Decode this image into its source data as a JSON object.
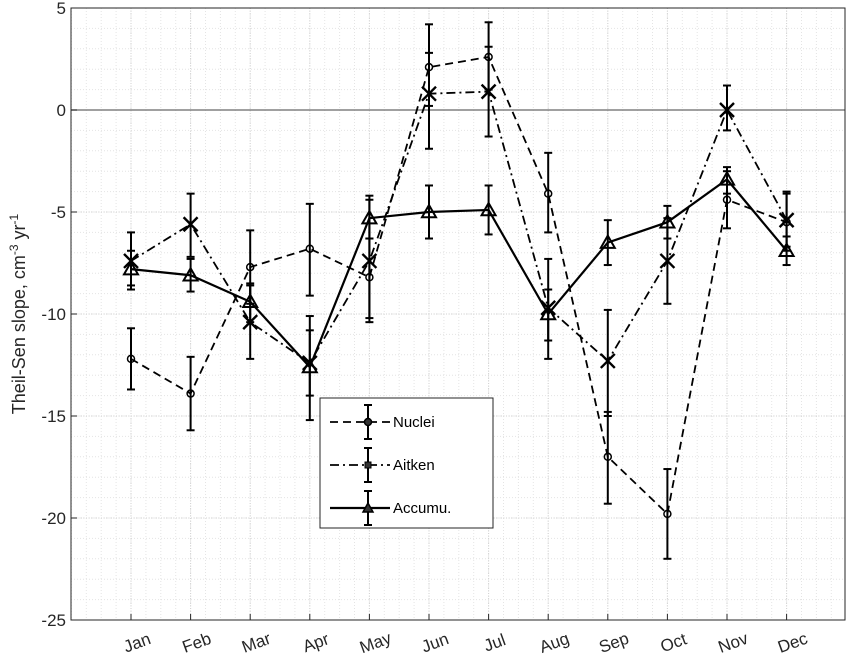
{
  "chart_data": {
    "type": "line",
    "title": "",
    "xlabel": "",
    "ylabel": "Theil-Sen slope, cm",
    "ylabel_sup1": "-3",
    "ylabel_mid": " yr",
    "ylabel_sup2": "-1",
    "categories": [
      "Jan",
      "Feb",
      "Mar",
      "Apr",
      "May",
      "Jun",
      "Jul",
      "Aug",
      "Sep",
      "Oct",
      "Nov",
      "Dec"
    ],
    "ylim": [
      -25,
      5
    ],
    "yticks": [
      5,
      0,
      -5,
      -10,
      -15,
      -20,
      -25
    ],
    "ytick_labels": [
      "5",
      "0",
      "-5",
      "-10",
      "-15",
      "-20",
      "-25"
    ],
    "grid": true,
    "minor_grid": true,
    "zero_line": true,
    "legend_position": "lower-center",
    "series": [
      {
        "name": "Nuclei",
        "line_style": "dashed",
        "marker": "circle",
        "values": [
          -12.2,
          -13.9,
          -7.7,
          -6.8,
          -8.2,
          2.1,
          2.6,
          -4.1,
          -17.0,
          -19.8,
          -4.4,
          -5.5
        ],
        "err_low": [
          -13.7,
          -15.7,
          -9.5,
          -9.1,
          -10.2,
          0.2,
          1.0,
          -6.0,
          -19.3,
          -22.0,
          -5.8,
          -6.9
        ],
        "err_high": [
          -10.7,
          -12.1,
          -5.9,
          -4.6,
          -6.3,
          4.2,
          4.3,
          -2.1,
          -14.8,
          -17.6,
          -3.0,
          -4.1
        ]
      },
      {
        "name": "Aitken",
        "line_style": "dashdot",
        "marker": "x",
        "values": [
          -7.4,
          -5.6,
          -10.4,
          -12.4,
          -7.4,
          0.8,
          0.9,
          -9.7,
          -12.3,
          -7.4,
          0.0,
          -5.4
        ],
        "err_low": [
          -8.8,
          -7.2,
          -12.2,
          -14.0,
          -10.4,
          -1.9,
          -1.3,
          -12.2,
          -15.0,
          -9.5,
          -1.0,
          -6.7
        ],
        "err_high": [
          -6.0,
          -4.1,
          -8.6,
          -10.8,
          -4.4,
          2.8,
          3.1,
          -7.3,
          -9.8,
          -5.3,
          1.2,
          -4.0
        ]
      },
      {
        "name": "Accumu.",
        "line_style": "solid",
        "marker": "triangle",
        "values": [
          -7.8,
          -8.1,
          -9.4,
          -12.6,
          -5.3,
          -5.0,
          -4.9,
          -10.0,
          -6.5,
          -5.5,
          -3.4,
          -6.9
        ],
        "err_low": [
          -8.6,
          -8.9,
          -10.4,
          -15.2,
          -6.3,
          -6.3,
          -6.1,
          -11.3,
          -7.6,
          -6.3,
          -4.1,
          -7.6
        ],
        "err_high": [
          -6.9,
          -7.3,
          -8.5,
          -10.1,
          -4.2,
          -3.7,
          -3.7,
          -8.8,
          -5.4,
          -4.7,
          -2.8,
          -6.2
        ]
      }
    ]
  }
}
